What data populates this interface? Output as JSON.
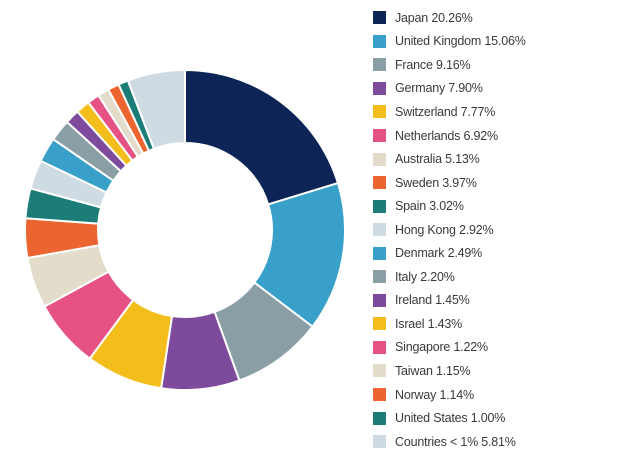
{
  "chart_data": {
    "type": "pie",
    "donut": true,
    "legend_position": "right",
    "start_angle_deg": 0,
    "direction": "clockwise",
    "slices": [
      {
        "label": "Japan 20.26%",
        "name": "Japan",
        "value": 20.26,
        "color": "#0d2457"
      },
      {
        "label": "United Kingdom 15.06%",
        "name": "United Kingdom",
        "value": 15.06,
        "color": "#38a0c9"
      },
      {
        "label": "France 9.16%",
        "name": "France",
        "value": 9.16,
        "color": "#8a9ea6"
      },
      {
        "label": "Germany 7.90%",
        "name": "Germany",
        "value": 7.9,
        "color": "#7e4a9c"
      },
      {
        "label": "Switzerland 7.77%",
        "name": "Switzerland",
        "value": 7.77,
        "color": "#f3bd1c"
      },
      {
        "label": "Netherlands 6.92%",
        "name": "Netherlands",
        "value": 6.92,
        "color": "#e65284"
      },
      {
        "label": "Australia 5.13%",
        "name": "Australia",
        "value": 5.13,
        "color": "#e3dccb"
      },
      {
        "label": "Sweden 3.97%",
        "name": "Sweden",
        "value": 3.97,
        "color": "#ec6530"
      },
      {
        "label": "Spain 3.02%",
        "name": "Spain",
        "value": 3.02,
        "color": "#1b7c78"
      },
      {
        "label": "Hong Kong 2.92%",
        "name": "Hong Kong",
        "value": 2.92,
        "color": "#cfdbe3"
      },
      {
        "label": "Denmark 2.49%",
        "name": "Denmark",
        "value": 2.49,
        "color": "#38a0c9"
      },
      {
        "label": "Italy 2.20%",
        "name": "Italy",
        "value": 2.2,
        "color": "#8a9ea6"
      },
      {
        "label": "Ireland 1.45%",
        "name": "Ireland",
        "value": 1.45,
        "color": "#7e4a9c"
      },
      {
        "label": "Israel 1.43%",
        "name": "Israel",
        "value": 1.43,
        "color": "#f3bd1c"
      },
      {
        "label": "Singapore 1.22%",
        "name": "Singapore",
        "value": 1.22,
        "color": "#e65284"
      },
      {
        "label": "Taiwan 1.15%",
        "name": "Taiwan",
        "value": 1.15,
        "color": "#e3dccb"
      },
      {
        "label": "Norway 1.14%",
        "name": "Norway",
        "value": 1.14,
        "color": "#ec6530"
      },
      {
        "label": "United States 1.00%",
        "name": "United States",
        "value": 1.0,
        "color": "#1b7c78"
      },
      {
        "label": "Countries < 1% 5.81%",
        "name": "Countries < 1%",
        "value": 5.81,
        "color": "#cfdbe3"
      }
    ]
  }
}
